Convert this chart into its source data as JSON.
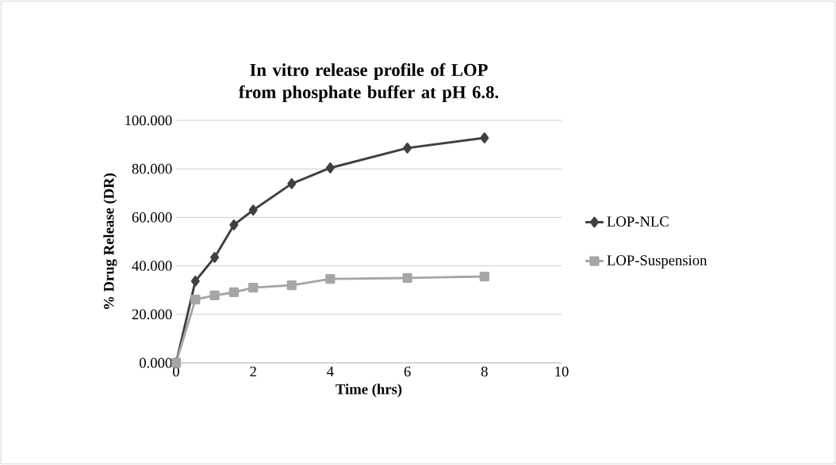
{
  "chart_data": {
    "type": "line",
    "title": "In vitro release profile of LOP from phosphate buffer at pH 6.8.",
    "xlabel": "Time  (hrs)",
    "ylabel": "%  Drug Release (DR)",
    "x": [
      0,
      0.5,
      1,
      1.5,
      2,
      3,
      4,
      6,
      8
    ],
    "series": [
      {
        "name": "LOP-NLC",
        "color": "#404040",
        "marker": "diamond",
        "values": [
          0,
          33.7,
          43.5,
          56.9,
          63.0,
          73.9,
          80.4,
          88.6,
          92.8
        ]
      },
      {
        "name": "LOP-Suspension",
        "color": "#a6a6a6",
        "marker": "square",
        "values": [
          0,
          26.1,
          27.8,
          29.1,
          31.0,
          32.0,
          34.6,
          35.0,
          35.6
        ]
      }
    ],
    "xlim": [
      0,
      10
    ],
    "xticks": [
      0,
      2,
      4,
      6,
      8,
      10
    ],
    "ylim": [
      0,
      100
    ],
    "yticks": [
      {
        "value": 0,
        "label": "0.000"
      },
      {
        "value": 20,
        "label": "20.000"
      },
      {
        "value": 40,
        "label": "40.000"
      },
      {
        "value": 60,
        "label": "60.000"
      },
      {
        "value": 80,
        "label": "80.000"
      },
      {
        "value": 100,
        "label": "100.000"
      }
    ],
    "grid": "y",
    "legend": "right",
    "line_style": "solid"
  }
}
